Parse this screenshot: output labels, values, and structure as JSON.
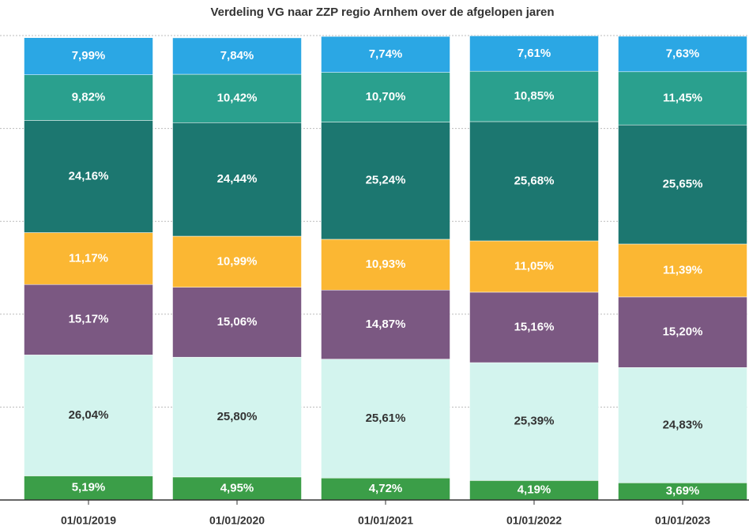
{
  "chart_data": {
    "type": "stacked_bar",
    "title": "Verdeling VG naar ZZP regio Arnhem over de afgelopen jaren",
    "categories": [
      "01/01/2019",
      "01/01/2020",
      "01/01/2021",
      "01/01/2022",
      "01/01/2023"
    ],
    "ylim": [
      0,
      100
    ],
    "yticks": [
      0,
      20,
      40,
      60,
      80,
      100
    ],
    "grid": true,
    "series": [
      {
        "color": "#3b9e48",
        "values": [
          5.19,
          4.95,
          4.72,
          4.19,
          3.69
        ],
        "value_labels": [
          "5,19%",
          "4,95%",
          "4,72%",
          "4,19%",
          "3,69%"
        ]
      },
      {
        "color": "#d3f4ee",
        "values": [
          26.04,
          25.8,
          25.61,
          25.39,
          24.83
        ],
        "value_labels": [
          "26,04%",
          "25,80%",
          "25,61%",
          "25,39%",
          "24,83%"
        ]
      },
      {
        "color": "#7b5882",
        "values": [
          15.17,
          15.06,
          14.87,
          15.16,
          15.2
        ],
        "value_labels": [
          "15,17%",
          "15,06%",
          "14,87%",
          "15,16%",
          "15,20%"
        ]
      },
      {
        "color": "#fbb733",
        "values": [
          11.17,
          10.99,
          10.93,
          11.05,
          11.39
        ],
        "value_labels": [
          "11,17%",
          "10,99%",
          "10,93%",
          "11,05%",
          "11,39%"
        ]
      },
      {
        "color": "#1c7770",
        "values": [
          24.16,
          24.44,
          25.24,
          25.68,
          25.65
        ],
        "value_labels": [
          "24,16%",
          "24,44%",
          "25,24%",
          "25,68%",
          "25,65%"
        ]
      },
      {
        "color": "#2aa08e",
        "values": [
          9.82,
          10.42,
          10.7,
          10.85,
          11.45
        ],
        "value_labels": [
          "9,82%",
          "10,42%",
          "10,70%",
          "10,85%",
          "11,45%"
        ]
      },
      {
        "color": "#2ba7e4",
        "values": [
          7.99,
          7.84,
          7.74,
          7.61,
          7.63
        ],
        "value_labels": [
          "7,99%",
          "7,84%",
          "7,74%",
          "7,61%",
          "7,63%"
        ]
      }
    ]
  }
}
